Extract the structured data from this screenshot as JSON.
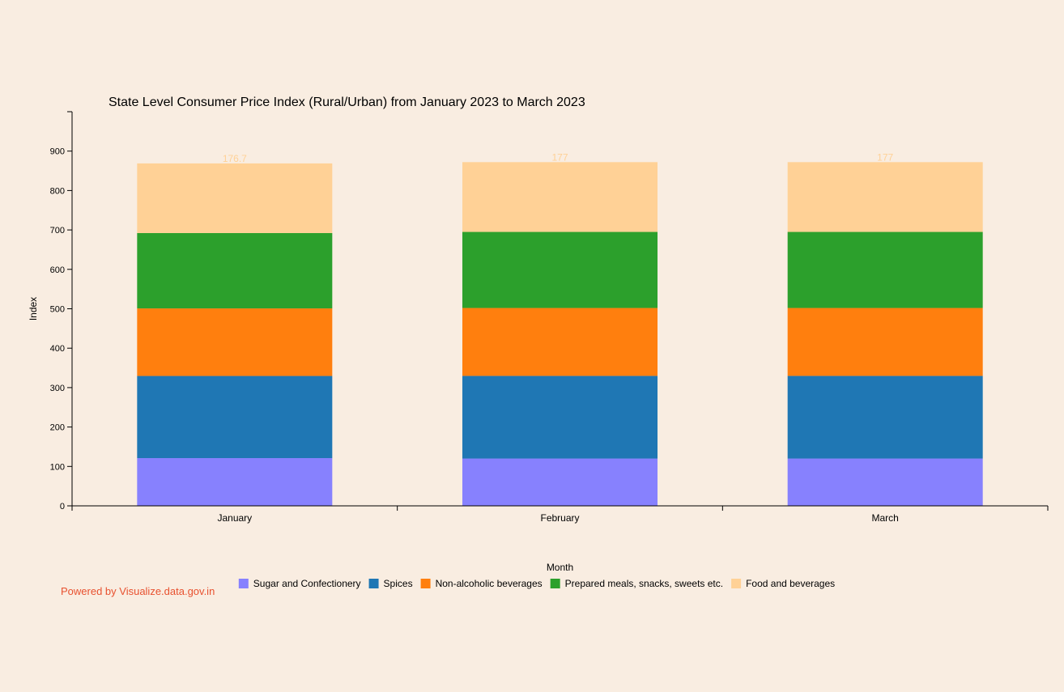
{
  "chart_data": {
    "type": "bar",
    "stacked": true,
    "title": "State Level Consumer Price Index (Rural/Urban) from January 2023 to March 2023",
    "xlabel": "Month",
    "ylabel": "Index",
    "ylim": [
      0,
      1000
    ],
    "yticks": [
      0,
      100,
      200,
      300,
      400,
      500,
      600,
      700,
      800,
      900
    ],
    "categories": [
      "January",
      "February",
      "March"
    ],
    "series": [
      {
        "name": "Sugar and Confectionery",
        "color": "#8781fe",
        "label_color": "#8781fe",
        "values": [
          121.1,
          120,
          120
        ],
        "labels": [
          "121.1",
          "120",
          "120"
        ]
      },
      {
        "name": "Spices",
        "color": "#1f77b4",
        "label_color": "#1f77b4",
        "values": [
          208.4,
          209.7,
          209.7
        ],
        "labels": [
          "208.4",
          "209.7",
          "209.7"
        ]
      },
      {
        "name": "Non-alcoholic beverages",
        "color": "#ff7f0e",
        "label_color": "#ff7f0e",
        "values": [
          171.4,
          172.3,
          172.3
        ],
        "labels": [
          "171.4",
          "172.3",
          "172.3"
        ]
      },
      {
        "name": "Prepared meals, snacks, sweets etc.",
        "color": "#2ca02c",
        "label_color": "#2ca02c",
        "values": [
          191.2,
          193,
          193
        ],
        "labels": [
          "191.2",
          "193",
          "193"
        ]
      },
      {
        "name": "Food and beverages",
        "color": "#ffd196",
        "label_color": "#ffd196",
        "values": [
          176.7,
          177,
          177
        ],
        "labels": [
          "176.7",
          "177",
          "177"
        ]
      }
    ],
    "legend_position": "bottom",
    "grid": false
  },
  "footer": {
    "powered_by": "Powered by Visualize.data.gov.in"
  },
  "colors": {
    "background": "#f9ede1",
    "axis": "#000000",
    "powered_by": "#e8512f"
  }
}
